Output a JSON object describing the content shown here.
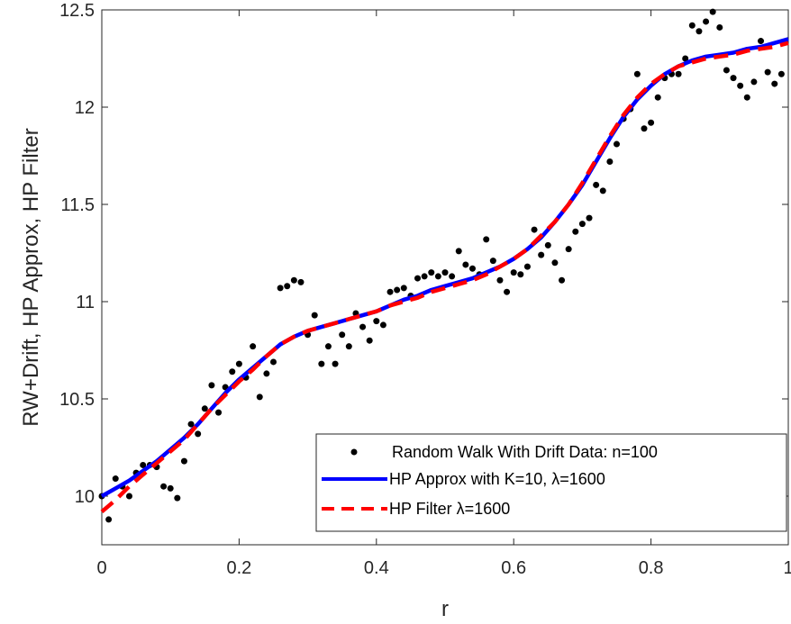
{
  "chart_data": {
    "type": "line",
    "xlabel": "r",
    "ylabel": "RW+Drift, HP Approx, HP Filter",
    "xlim": [
      0,
      1
    ],
    "ylim": [
      9.75,
      12.5
    ],
    "x_ticks": [
      "0",
      "0.2",
      "0.4",
      "0.6",
      "0.8",
      "1"
    ],
    "y_ticks": [
      "10",
      "10.5",
      "11",
      "11.5",
      "12",
      "12.5"
    ],
    "x_tick_values": [
      0,
      0.2,
      0.4,
      0.6,
      0.8,
      1.0
    ],
    "y_tick_values": [
      10,
      10.5,
      11,
      11.5,
      12,
      12.5
    ],
    "grid": false,
    "legend_position": "bottom-right",
    "series": [
      {
        "name": "Random Walk With Drift Data: n=100",
        "kind": "scatter",
        "color": "#000000",
        "x": [
          0.0,
          0.01,
          0.02,
          0.03,
          0.04,
          0.05,
          0.06,
          0.07,
          0.08,
          0.09,
          0.1,
          0.11,
          0.12,
          0.13,
          0.14,
          0.15,
          0.16,
          0.17,
          0.18,
          0.19,
          0.2,
          0.21,
          0.22,
          0.23,
          0.24,
          0.25,
          0.26,
          0.27,
          0.28,
          0.29,
          0.3,
          0.31,
          0.32,
          0.33,
          0.34,
          0.35,
          0.36,
          0.37,
          0.38,
          0.39,
          0.4,
          0.41,
          0.42,
          0.43,
          0.44,
          0.45,
          0.46,
          0.47,
          0.48,
          0.49,
          0.5,
          0.51,
          0.52,
          0.53,
          0.54,
          0.55,
          0.56,
          0.57,
          0.58,
          0.59,
          0.6,
          0.61,
          0.62,
          0.63,
          0.64,
          0.65,
          0.66,
          0.67,
          0.68,
          0.69,
          0.7,
          0.71,
          0.72,
          0.73,
          0.74,
          0.75,
          0.76,
          0.77,
          0.78,
          0.79,
          0.8,
          0.81,
          0.82,
          0.83,
          0.84,
          0.85,
          0.86,
          0.87,
          0.88,
          0.89,
          0.9,
          0.91,
          0.92,
          0.93,
          0.94,
          0.95,
          0.96,
          0.97,
          0.98,
          0.99
        ],
        "y": [
          10.0,
          9.88,
          10.09,
          10.05,
          10.0,
          10.12,
          10.16,
          10.16,
          10.15,
          10.05,
          10.04,
          9.99,
          10.18,
          10.37,
          10.32,
          10.45,
          10.57,
          10.43,
          10.56,
          10.64,
          10.68,
          10.61,
          10.77,
          10.51,
          10.63,
          10.69,
          11.07,
          11.08,
          11.11,
          11.1,
          10.83,
          10.93,
          10.68,
          10.77,
          10.68,
          10.83,
          10.77,
          10.94,
          10.87,
          10.8,
          10.9,
          10.88,
          11.05,
          11.06,
          11.07,
          11.03,
          11.12,
          11.13,
          11.15,
          11.13,
          11.15,
          11.13,
          11.26,
          11.19,
          11.17,
          11.14,
          11.32,
          11.21,
          11.11,
          11.05,
          11.15,
          11.14,
          11.18,
          11.37,
          11.24,
          11.29,
          11.2,
          11.11,
          11.27,
          11.36,
          11.4,
          11.43,
          11.6,
          11.57,
          11.72,
          11.81,
          11.94,
          11.99,
          12.17,
          11.89,
          11.92,
          12.05,
          12.15,
          12.17,
          12.17,
          12.25,
          12.42,
          12.39,
          12.44,
          12.49,
          12.41,
          12.19,
          12.15,
          12.11,
          12.05,
          12.13,
          12.34,
          12.18,
          12.12,
          12.17
        ]
      },
      {
        "name": "HP Approx with K=10, λ=1600",
        "kind": "line",
        "color": "#0000ff",
        "x": [
          0,
          0.02,
          0.04,
          0.06,
          0.08,
          0.1,
          0.12,
          0.14,
          0.16,
          0.18,
          0.2,
          0.22,
          0.24,
          0.26,
          0.28,
          0.3,
          0.32,
          0.34,
          0.36,
          0.38,
          0.4,
          0.42,
          0.44,
          0.46,
          0.48,
          0.5,
          0.52,
          0.54,
          0.56,
          0.58,
          0.6,
          0.62,
          0.64,
          0.66,
          0.68,
          0.7,
          0.72,
          0.74,
          0.76,
          0.78,
          0.8,
          0.82,
          0.84,
          0.86,
          0.88,
          0.9,
          0.92,
          0.94,
          0.96,
          0.98,
          1.0
        ],
        "y": [
          10.0,
          10.04,
          10.08,
          10.13,
          10.18,
          10.24,
          10.3,
          10.37,
          10.45,
          10.53,
          10.6,
          10.66,
          10.72,
          10.78,
          10.82,
          10.85,
          10.87,
          10.89,
          10.91,
          10.93,
          10.95,
          10.98,
          11.01,
          11.03,
          11.06,
          11.08,
          11.1,
          11.12,
          11.15,
          11.18,
          11.22,
          11.27,
          11.33,
          11.41,
          11.5,
          11.6,
          11.72,
          11.84,
          11.95,
          12.04,
          12.11,
          12.17,
          12.21,
          12.24,
          12.26,
          12.27,
          12.28,
          12.3,
          12.31,
          12.33,
          12.35
        ]
      },
      {
        "name": "HP Filter λ=1600",
        "kind": "dashed-line",
        "color": "#ff0000",
        "x": [
          0,
          0.02,
          0.04,
          0.06,
          0.08,
          0.1,
          0.12,
          0.14,
          0.16,
          0.18,
          0.2,
          0.22,
          0.24,
          0.26,
          0.28,
          0.3,
          0.32,
          0.34,
          0.36,
          0.38,
          0.4,
          0.42,
          0.44,
          0.46,
          0.48,
          0.5,
          0.52,
          0.54,
          0.56,
          0.58,
          0.6,
          0.62,
          0.64,
          0.66,
          0.68,
          0.7,
          0.72,
          0.74,
          0.76,
          0.78,
          0.8,
          0.82,
          0.84,
          0.86,
          0.88,
          0.9,
          0.92,
          0.94,
          0.96,
          0.98,
          1.0
        ],
        "y": [
          9.92,
          9.98,
          10.05,
          10.11,
          10.17,
          10.23,
          10.29,
          10.37,
          10.45,
          10.52,
          10.59,
          10.65,
          10.72,
          10.78,
          10.82,
          10.85,
          10.87,
          10.89,
          10.91,
          10.93,
          10.95,
          10.98,
          11.0,
          11.02,
          11.05,
          11.07,
          11.09,
          11.11,
          11.14,
          11.18,
          11.22,
          11.27,
          11.34,
          11.41,
          11.5,
          11.61,
          11.73,
          11.85,
          11.96,
          12.05,
          12.12,
          12.17,
          12.21,
          12.23,
          12.25,
          12.26,
          12.27,
          12.29,
          12.3,
          12.31,
          12.33
        ]
      }
    ]
  }
}
